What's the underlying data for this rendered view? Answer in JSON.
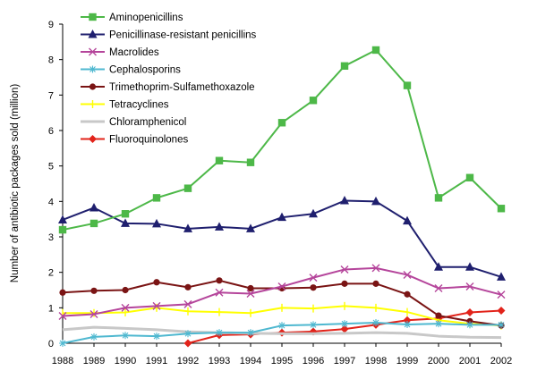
{
  "chart_data": {
    "type": "line",
    "ylabel": "Number of antibiotic packages sold (million)",
    "xlabel": "",
    "ylim": [
      0,
      9
    ],
    "yticks": [
      0,
      1,
      2,
      3,
      4,
      5,
      6,
      7,
      8,
      9
    ],
    "x": [
      "1988",
      "1989",
      "1990",
      "1991",
      "1992",
      "1993",
      "1994",
      "1995",
      "1996",
      "1997",
      "1998",
      "1999",
      "2000",
      "2001",
      "2002"
    ],
    "grid": false,
    "legend": "top-left",
    "series": [
      {
        "name": "Aminopenicillins",
        "color": "#4db848",
        "marker": "square",
        "values": [
          3.2,
          3.38,
          3.65,
          4.1,
          4.37,
          5.15,
          5.1,
          6.22,
          6.85,
          7.82,
          8.27,
          7.27,
          4.1,
          4.67,
          3.8
        ]
      },
      {
        "name": "Penicillinase-resistant penicillins",
        "color": "#1f1f6e",
        "marker": "triangle",
        "values": [
          3.48,
          3.82,
          3.38,
          3.37,
          3.23,
          3.28,
          3.23,
          3.55,
          3.65,
          4.02,
          4.0,
          3.45,
          2.15,
          2.15,
          1.87
        ]
      },
      {
        "name": "Macrolides",
        "color": "#b5459b",
        "marker": "x",
        "values": [
          0.77,
          0.82,
          1.0,
          1.05,
          1.1,
          1.43,
          1.4,
          1.6,
          1.85,
          2.08,
          2.12,
          1.93,
          1.55,
          1.6,
          1.37
        ]
      },
      {
        "name": "Cephalosporins",
        "color": "#4fb8d0",
        "marker": "star",
        "values": [
          0.0,
          0.18,
          0.22,
          0.2,
          0.27,
          0.3,
          0.3,
          0.5,
          0.52,
          0.55,
          0.58,
          0.53,
          0.55,
          0.52,
          0.52
        ]
      },
      {
        "name": "Trimethoprim-Sulfamethoxazole",
        "color": "#7a1414",
        "marker": "circle",
        "values": [
          1.43,
          1.48,
          1.5,
          1.72,
          1.58,
          1.77,
          1.55,
          1.55,
          1.57,
          1.68,
          1.68,
          1.38,
          0.78,
          0.62,
          0.5
        ]
      },
      {
        "name": "Tetracyclines",
        "color": "#ffff00",
        "marker": "bar",
        "values": [
          0.85,
          0.85,
          0.87,
          1.0,
          0.9,
          0.88,
          0.85,
          1.0,
          0.98,
          1.05,
          1.0,
          0.88,
          0.65,
          0.55,
          0.5
        ]
      },
      {
        "name": "Chloramphenicol",
        "color": "#c8c8c8",
        "marker": "none",
        "values": [
          0.38,
          0.45,
          0.42,
          0.38,
          0.32,
          0.3,
          0.28,
          0.27,
          0.27,
          0.28,
          0.3,
          0.28,
          0.2,
          0.17,
          0.16
        ]
      },
      {
        "name": "Fluoroquinolones",
        "color": "#e2231a",
        "marker": "diamond",
        "values": [
          null,
          null,
          null,
          null,
          0.0,
          0.23,
          0.25,
          0.3,
          0.33,
          0.4,
          0.52,
          0.65,
          0.7,
          0.87,
          0.92
        ]
      }
    ]
  }
}
